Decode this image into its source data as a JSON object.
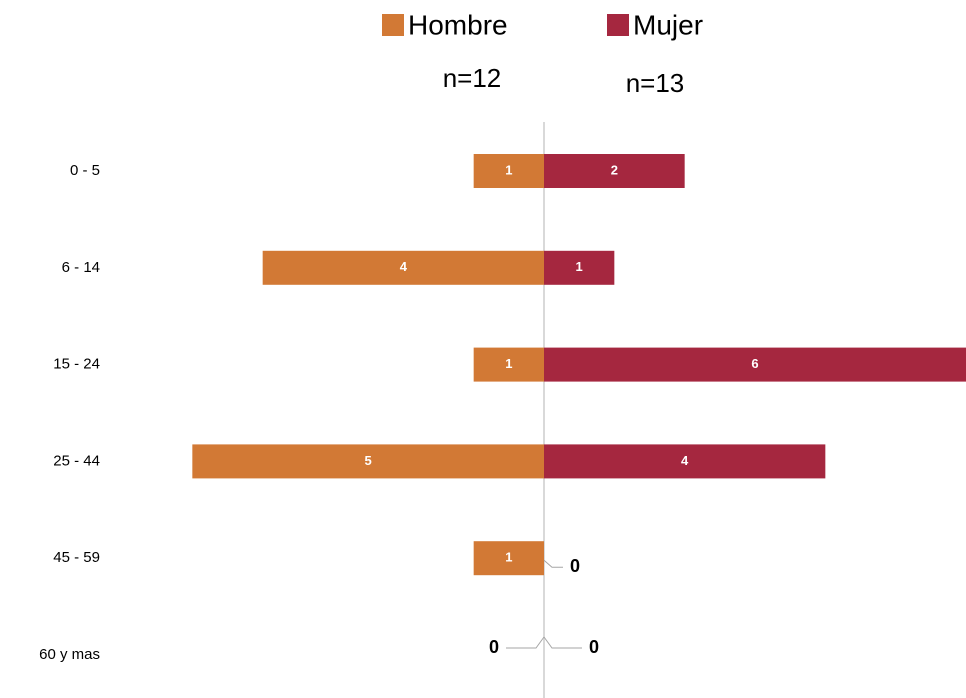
{
  "chart_data": {
    "type": "bar",
    "orientation": "pyramid",
    "categories": [
      "0 - 5",
      "6 - 14",
      "15 - 24",
      "25 - 44",
      "45 - 59",
      "60 y mas"
    ],
    "series": [
      {
        "name": "Hombre",
        "color": "#d27935",
        "values": [
          1,
          4,
          1,
          5,
          1,
          0
        ]
      },
      {
        "name": "Mujer",
        "color": "#a5273f",
        "values": [
          2,
          1,
          6,
          4,
          0,
          0
        ]
      }
    ],
    "annotations": [
      "n=12",
      "n=13"
    ],
    "xlim": [
      -6,
      6
    ]
  }
}
